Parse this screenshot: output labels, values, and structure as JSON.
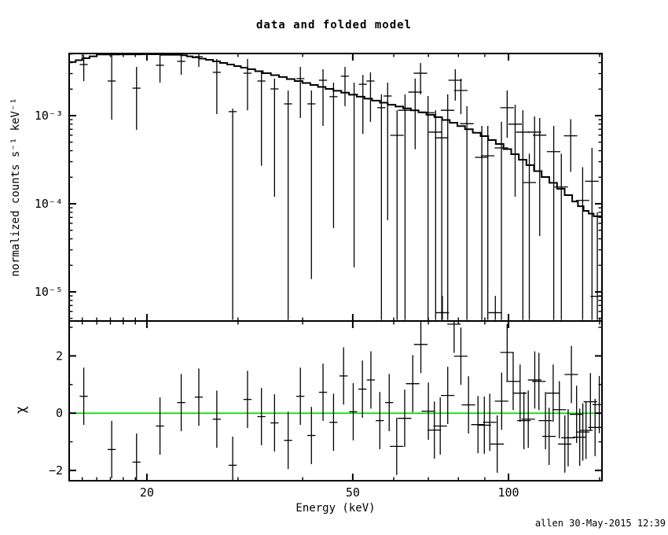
{
  "title": "data and folded model",
  "footer": "allen 30-May-2015 12:39",
  "chart_data": {
    "type": "line",
    "description": "X-ray spectrum: data with error bars and folded model (top, log-log), chi residuals (bottom)",
    "x_axis": {
      "label": "Energy (keV)",
      "scale": "log",
      "range": [
        14.15,
        151.6
      ],
      "major_ticks": [
        20,
        50,
        100
      ],
      "major_tick_labels": [
        "20",
        "50",
        "100"
      ],
      "minor_ticks": [
        15,
        16,
        17,
        18,
        19,
        30,
        40,
        60,
        70,
        80,
        90,
        150
      ]
    },
    "top_panel": {
      "ylabel": "normalized counts s⁻¹ keV⁻¹",
      "scale": "log",
      "range": [
        4.67e-06,
        0.00507
      ],
      "major_ticks": [
        0.001,
        0.0001,
        1e-05
      ],
      "major_tick_labels": [
        "10⁻³",
        "10⁻⁴",
        "10⁻⁵"
      ],
      "model_color": "#000000",
      "data_color": "#000000",
      "model_steps": [
        [
          14.15,
          0.00405
        ],
        [
          15.0,
          0.00448
        ],
        [
          16.0,
          0.00495
        ],
        [
          19.5,
          0.00497
        ],
        [
          23.3,
          0.00485
        ],
        [
          24.5,
          0.00458
        ],
        [
          26.0,
          0.0043
        ],
        [
          27.7,
          0.00396
        ],
        [
          29.5,
          0.00365
        ],
        [
          31.3,
          0.00336
        ],
        [
          33.5,
          0.00303
        ],
        [
          36.0,
          0.00274
        ],
        [
          38.6,
          0.00247
        ],
        [
          41.4,
          0.00223
        ],
        [
          44.3,
          0.00201
        ],
        [
          47.5,
          0.00182
        ],
        [
          50.9,
          0.00164
        ],
        [
          54.5,
          0.00148
        ],
        [
          58.4,
          0.00133
        ],
        [
          62.6,
          0.00121
        ],
        [
          67.0,
          0.00109
        ],
        [
          71.9,
          0.00096
        ],
        [
          77.0,
          0.00083
        ],
        [
          82.4,
          0.0007
        ],
        [
          88.3,
          0.000585
        ],
        [
          94.5,
          0.000477
        ],
        [
          101.2,
          0.000365
        ],
        [
          108.3,
          0.000274
        ],
        [
          115.9,
          0.000201
        ],
        [
          124.1,
          0.000148
        ],
        [
          132.8,
          0.000106
        ],
        [
          139.7,
          8.3e-05
        ],
        [
          146.1,
          7.2e-05
        ],
        [
          151.6,
          7.2e-05
        ]
      ],
      "data_points": [
        [
          15.1,
          0.0038,
          0.00246,
          0.0049
        ],
        [
          17.1,
          0.00247,
          0.0009,
          0.0049
        ],
        [
          19.1,
          0.00205,
          0.00069,
          0.00357
        ],
        [
          21.2,
          0.00373,
          0.00237,
          0.00488
        ],
        [
          23.3,
          0.00413,
          0.0029,
          0.00505
        ],
        [
          25.2,
          0.00467,
          0.00357,
          0.00506
        ],
        [
          27.3,
          0.0031,
          0.00104,
          0.0044
        ],
        [
          29.3,
          0.00111,
          4.8e-06,
          0.0012
        ],
        [
          31.3,
          0.00303,
          0.00115,
          0.0044
        ],
        [
          33.3,
          0.00247,
          0.00027,
          0.0032
        ],
        [
          35.3,
          0.00201,
          0.00012,
          0.00263
        ],
        [
          37.5,
          0.00136,
          4.8e-06,
          0.00193
        ],
        [
          39.6,
          0.00263,
          0.00094,
          0.00357
        ],
        [
          41.6,
          0.00136,
          1.4e-05,
          0.00193
        ],
        [
          43.8,
          0.00252,
          0.000765,
          0.00336
        ],
        [
          45.9,
          0.00164,
          5.3e-05,
          0.00237
        ],
        [
          48.3,
          0.0028,
          0.00128,
          0.00357
        ],
        [
          50.3,
          0.00174,
          1.9e-05,
          0.00237
        ],
        [
          52.3,
          0.00227,
          0.00062,
          0.0029
        ],
        [
          54.1,
          0.00247,
          0.00085,
          0.0031
        ],
        [
          56.8,
          0.00123,
          4.8e-06,
          0.00174
        ],
        [
          58.4,
          0.00167,
          6.5e-05,
          0.00237
        ],
        [
          60.9,
          0.000598,
          4.8e-06,
          0.00115
        ],
        [
          63.1,
          0.00115,
          4.8e-06,
          0.00174
        ],
        [
          66.0,
          0.00185,
          0.000415,
          0.00263
        ],
        [
          67.6,
          0.00303,
          0.00174,
          0.00396
        ],
        [
          69.9,
          0.00108,
          4.8e-06,
          0.00167
        ],
        [
          72.3,
          0.00065,
          4.8e-06,
          0.00115
        ],
        [
          74.3,
          0.00056,
          4.8e-06,
          0.00098
        ],
        [
          74.5,
          5.8e-06,
          4.8e-06,
          9e-06
        ],
        [
          76.3,
          0.00115,
          4.8e-06,
          0.00174
        ],
        [
          78.9,
          0.00252,
          0.00148,
          0.00336
        ],
        [
          80.9,
          0.00193,
          0.00104,
          0.00263
        ],
        [
          83.1,
          0.00081,
          4.8e-06,
          0.00128
        ],
        [
          88.8,
          0.000336,
          4.8e-06,
          0.000765
        ],
        [
          91.2,
          0.00035,
          4.8e-06,
          0.000765
        ],
        [
          94.3,
          5.8e-06,
          4.8e-06,
          9e-06
        ],
        [
          96.9,
          0.00043,
          4.8e-06,
          0.00085
        ],
        [
          99.4,
          0.00123,
          0.00056,
          0.00193
        ],
        [
          103.0,
          0.0008,
          0.00012,
          0.00133
        ],
        [
          106.6,
          0.00065,
          4.8e-06,
          0.00115
        ],
        [
          109.7,
          0.000174,
          4.8e-06,
          0.00037
        ],
        [
          112.3,
          0.00065,
          0.00023,
          0.00098
        ],
        [
          114.9,
          0.0006,
          4.3e-05,
          0.00094
        ],
        [
          122.3,
          0.00039,
          4.8e-06,
          0.000765
        ],
        [
          126.5,
          0.000155,
          4.8e-06,
          0.00037
        ],
        [
          131.9,
          0.00059,
          0.00023,
          0.00091
        ],
        [
          139.1,
          0.000109,
          4.8e-06,
          0.00026
        ],
        [
          145.0,
          0.00018,
          4.8e-06,
          0.00043
        ],
        [
          148.5,
          8.9e-06,
          4.8e-06,
          8e-05
        ]
      ]
    },
    "bottom_panel": {
      "ylabel": "χ",
      "scale": "linear",
      "range": [
        -2.36,
        3.22
      ],
      "major_ticks": [
        -2,
        0,
        2
      ],
      "major_tick_labels": [
        "−2",
        "0",
        "2"
      ],
      "minor_ticks": [
        -1,
        1,
        3
      ],
      "zero_line_value": 0,
      "zero_line_color": "#00dd00",
      "chi_error": 1.0,
      "chi_points": [
        [
          15.1,
          0.59
        ],
        [
          17.1,
          -1.27
        ],
        [
          19.1,
          -1.71
        ],
        [
          21.2,
          -0.45
        ],
        [
          23.3,
          0.37
        ],
        [
          25.2,
          0.56
        ],
        [
          27.3,
          -0.21
        ],
        [
          29.3,
          -1.82
        ],
        [
          31.3,
          0.48
        ],
        [
          33.3,
          -0.12
        ],
        [
          35.3,
          -0.34
        ],
        [
          37.5,
          -0.95
        ],
        [
          39.6,
          0.59
        ],
        [
          41.6,
          -0.78
        ],
        [
          43.8,
          0.73
        ],
        [
          45.9,
          -0.32
        ],
        [
          48.0,
          1.3
        ],
        [
          50.1,
          0.05
        ],
        [
          52.2,
          0.84
        ],
        [
          54.2,
          1.16
        ],
        [
          56.4,
          -0.26
        ],
        [
          58.8,
          0.37
        ],
        [
          60.8,
          -1.16
        ],
        [
          63.0,
          -0.18
        ],
        [
          65.3,
          1.03
        ],
        [
          67.7,
          2.4
        ],
        [
          70.0,
          0.07
        ],
        [
          71.9,
          -0.59
        ],
        [
          73.8,
          -0.45
        ],
        [
          76.3,
          0.62
        ],
        [
          78.5,
          3.11
        ],
        [
          80.9,
          1.99
        ],
        [
          83.7,
          0.29
        ],
        [
          87.3,
          -0.4
        ],
        [
          89.8,
          -0.42
        ],
        [
          92.0,
          -0.32
        ],
        [
          95.1,
          -1.08
        ],
        [
          97.0,
          0.42
        ],
        [
          99.4,
          2.12
        ],
        [
          102.1,
          1.11
        ],
        [
          105.3,
          0.7
        ],
        [
          107.1,
          -0.26
        ],
        [
          109.2,
          -0.21
        ],
        [
          112.4,
          1.16
        ],
        [
          114.5,
          1.11
        ],
        [
          117.9,
          -0.26
        ],
        [
          119.8,
          -0.81
        ],
        [
          122.0,
          0.7
        ],
        [
          125.4,
          0.12
        ],
        [
          128.5,
          -1.08
        ],
        [
          130.4,
          -0.86
        ],
        [
          132.3,
          1.35
        ],
        [
          135.4,
          -0.04
        ],
        [
          137.3,
          -0.84
        ],
        [
          139.2,
          -0.66
        ],
        [
          141.2,
          -0.6
        ],
        [
          144.0,
          0.4
        ],
        [
          147.0,
          -0.5
        ],
        [
          149.8,
          0.3
        ]
      ]
    },
    "bin_halfwidth_frac_low": 0.018,
    "bin_halfwidth_frac_high": 0.03,
    "bin_frac_threshold_keV": 60,
    "layout_hints": {
      "grid": false,
      "legend": "none",
      "frame_color": "#000000",
      "background": "#ffffff"
    }
  }
}
